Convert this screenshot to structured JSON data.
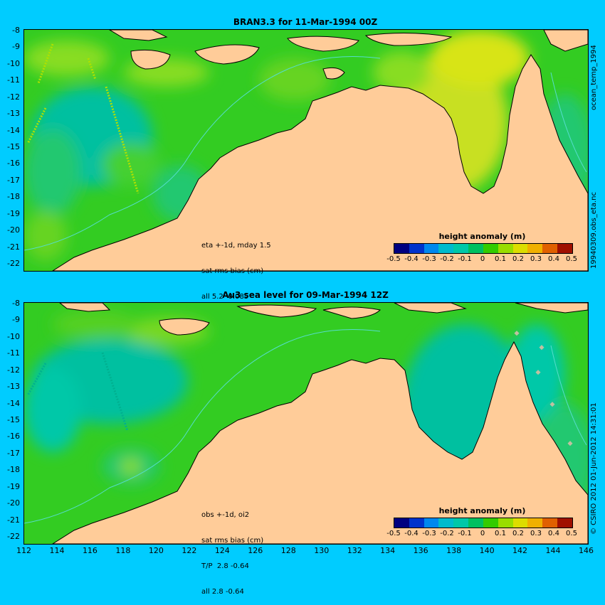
{
  "panels": [
    {
      "title": "BRAN3.3 for 11-Mar-1994 00Z",
      "notes": [
        "eta +-1d, mday 1.5",
        "sat rms bias (cm)",
        "all 5.2 -0.085"
      ]
    },
    {
      "title": "Au3 sea level  for 09-Mar-1994 12Z",
      "notes": [
        "obs +-1d, oi2",
        "sat rms bias (cm)",
        "T/P  2.8 -0.64",
        "all 2.8 -0.64"
      ]
    }
  ],
  "lat_ticks": [
    "-8",
    "-9",
    "-10",
    "-11",
    "-12",
    "-13",
    "-14",
    "-15",
    "-16",
    "-17",
    "-18",
    "-19",
    "-20",
    "-21",
    "-22"
  ],
  "lon_ticks": [
    "112",
    "114",
    "116",
    "118",
    "120",
    "122",
    "124",
    "126",
    "128",
    "130",
    "132",
    "134",
    "136",
    "138",
    "140",
    "142",
    "144",
    "146"
  ],
  "colorbar": {
    "title": "height anomaly (m)",
    "ticks": [
      "-0.5",
      "-0.4",
      "-0.3",
      "-0.2",
      "-0.1",
      "0",
      "0.1",
      "0.2",
      "0.3",
      "0.4",
      "0.5"
    ],
    "colors": [
      "#000080",
      "#0033cc",
      "#0088ee",
      "#00bbcc",
      "#00c8a8",
      "#00c060",
      "#33cc00",
      "#99dd00",
      "#dddd00",
      "#f0b000",
      "#e06000",
      "#a01000"
    ]
  },
  "side_labels": {
    "top_a": "ocean_temp_1994",
    "top_b": "19940309.obs_eta.nc",
    "bottom": "© CSIRO 2012  01-Jun-2012 14:31:01"
  },
  "colors": {
    "background": "#00ccff",
    "land": "#ffcc99",
    "ocean_base": "#33cc22"
  }
}
